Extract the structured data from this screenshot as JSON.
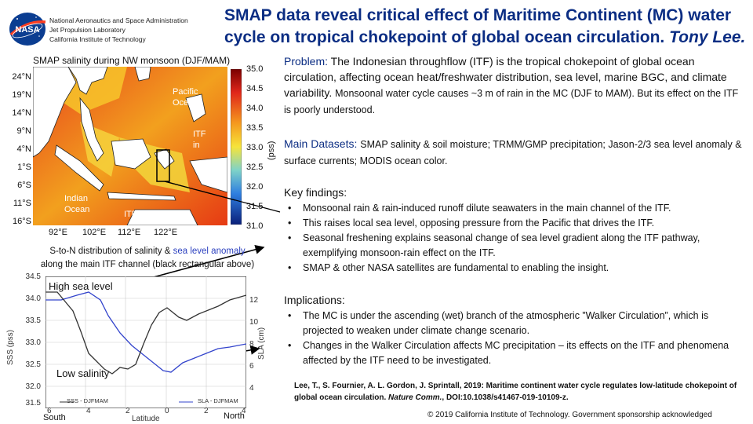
{
  "header": {
    "institution_lines": [
      "National Aeronautics and Space Administration",
      "Jet Propulsion Laboratory",
      "California Institute of Technology"
    ],
    "title_line1": "SMAP data reveal critical effect of Maritime Continent (MC) water",
    "title_line2": "cycle on tropical chokepoint of global ocean circulation.",
    "author": "Tony Lee."
  },
  "map": {
    "caption": "SMAP salinity during NW monsoon (DJF/MAM)",
    "lat_ticks": [
      "24°N",
      "19°N",
      "14°N",
      "9°N",
      "4°N",
      "1°S",
      "6°S",
      "11°S",
      "16°S"
    ],
    "lon_ticks": [
      "92°E",
      "102°E",
      "112°E",
      "122°E"
    ],
    "colorbar_ticks": [
      "35.0",
      "34.5",
      "34.0",
      "33.5",
      "33.0",
      "32.5",
      "32.0",
      "31.5",
      "31.0"
    ],
    "colorbar_unit": "(pss)",
    "labels": {
      "pacific": [
        "Pacific",
        "Ocean"
      ],
      "itf_in": [
        "ITF",
        "in"
      ],
      "indian": [
        "Indian",
        "Ocean"
      ],
      "itf_out": "ITF out"
    }
  },
  "series": {
    "caption_part1": "S-to-N distribution of salinity &",
    "caption_blue": "sea level anomaly",
    "caption_part2": "along the main ITF channel (black rectangular above)",
    "y_left_ticks": [
      "34.5",
      "34.0",
      "33.5",
      "33.0",
      "32.5",
      "32.0",
      "31.5"
    ],
    "y_right_ticks": [
      "12",
      "10",
      "8",
      "6",
      "4"
    ],
    "x_ticks": [
      "6",
      "4",
      "2",
      "0",
      "2",
      "4"
    ],
    "y_left_label": "SSS (pss)",
    "y_right_label": "SLA (cm)",
    "x_label": "Latitude",
    "x_south": "South",
    "x_north": "North",
    "legend_sss": "SSS - DJFMAM",
    "legend_sla": "SLA - DJFMAM",
    "annot_high": "High sea level",
    "annot_low": "Low salinity"
  },
  "problem": {
    "heading": "Problem:",
    "text": "The Indonesian throughflow (ITF) is the tropical chokepoint of global ocean circulation, affecting ocean heat/freshwater distribution, sea level, marine BGC, and climate variability.",
    "text_small": "Monsoonal water cycle causes ~3 m of rain in the MC (DJF to MAM). But its effect on the ITF is poorly understood."
  },
  "datasets": {
    "heading": "Main Datasets:",
    "text": "SMAP salinity & soil moisture; TRMM/GMP precipitation; Jason-2/3 sea level anomaly & surface currents; MODIS ocean color."
  },
  "findings": {
    "heading": "Key findings:",
    "items": [
      "Monsoonal rain & rain-induced runoff dilute seawaters in the main channel of the ITF.",
      "This raises local sea level, opposing pressure from the Pacific that drives the ITF.",
      "Seasonal freshening explains seasonal change of sea level gradient along the ITF pathway, exemplifying monsoon-rain effect on the ITF.",
      "SMAP & other NASA satellites are fundamental to enabling the insight."
    ]
  },
  "implications": {
    "heading": "Implications:",
    "items": [
      "The MC is under the ascending (wet) branch of the atmospheric ”Walker Circulation”, which is projected to weaken under climate change scenario.",
      "Changes in the Walker Circulation affects MC precipitation – its effects on the ITF and phenomena affected by the ITF need to be investigated."
    ]
  },
  "reference": {
    "text": "Lee, T., S. Fournier, A. L. Gordon, J. Sprintall, 2019: Maritime continent water cycle regulates low-latitude chokepoint of global ocean circulation.",
    "journal": "Nature Comm.",
    "doi": ", DOI:10.1038/s41467-019-10109-z."
  },
  "copyright": "© 2019 California Institute of Technology. Government sponsorship acknowledged",
  "colors": {
    "title": "#0b2d83",
    "sla_line": "#3344cc",
    "sss_line": "#333333"
  }
}
